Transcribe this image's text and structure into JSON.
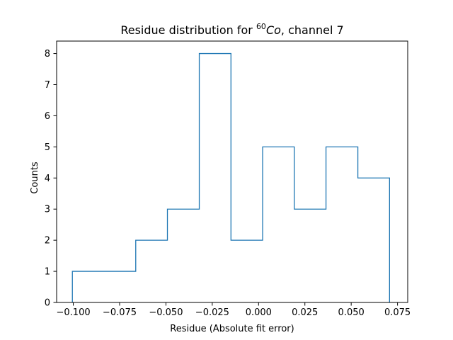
{
  "chart_data": {
    "type": "histogram-step",
    "title_prefix": "Residue distribution for ",
    "title_isotope_mass": "60",
    "title_isotope_symbol": "Co",
    "title_suffix": ", channel 7",
    "xlabel": "Residue (Absolute fit error)",
    "ylabel": "Counts",
    "xlim": [
      -0.109,
      0.0805
    ],
    "ylim": [
      0,
      8.4
    ],
    "xticks": [
      -0.1,
      -0.075,
      -0.05,
      -0.025,
      0.0,
      0.025,
      0.05,
      0.075
    ],
    "xtick_labels": [
      "−0.100",
      "−0.075",
      "−0.050",
      "−0.025",
      "0.000",
      "0.025",
      "0.050",
      "0.075"
    ],
    "yticks": [
      0,
      1,
      2,
      3,
      4,
      5,
      6,
      7,
      8
    ],
    "ytick_labels": [
      "0",
      "1",
      "2",
      "3",
      "4",
      "5",
      "6",
      "7",
      "8"
    ],
    "bin_edges": [
      -0.1005,
      -0.0834,
      -0.0663,
      -0.0492,
      -0.032,
      -0.0149,
      0.0022,
      0.0193,
      0.0364,
      0.0536,
      0.0707
    ],
    "counts": [
      1,
      1,
      2,
      3,
      8,
      2,
      5,
      3,
      5,
      4
    ],
    "grid": false,
    "line_color": "#1f77b4"
  }
}
